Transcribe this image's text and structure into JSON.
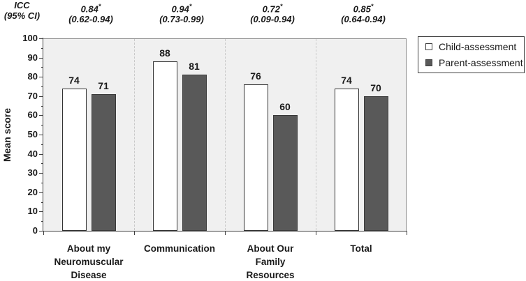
{
  "figure": {
    "icc_header": {
      "line1": "ICC",
      "line2": "(95% CI)"
    }
  },
  "colors": {
    "text": "#1a1a1a",
    "axis_line": "#404040",
    "frame_line": "#8c8c8c",
    "plot_background": "#f0f0f0",
    "separator_line": "#c8c8c8",
    "child_bar_fill": "#ffffff",
    "child_bar_border": "#333333",
    "parent_bar_fill": "#595959",
    "parent_bar_border": "#3a3a3a",
    "legend_border": "#404040"
  },
  "chart_data": {
    "type": "bar",
    "title": "",
    "xlabel": "",
    "ylabel": "Mean score",
    "ylim": [
      0,
      100
    ],
    "y_major_tick": 10,
    "y_minor_tick": 5,
    "grid": "off",
    "legend_position": "right",
    "categories": [
      "About my\nNeuromuscular\nDisease",
      "Communication",
      "About Our\nFamily\nResources",
      "Total"
    ],
    "series": [
      {
        "name": "Child-assessment",
        "values": [
          74,
          88,
          76,
          74
        ],
        "fill": "#ffffff",
        "border": "#333333"
      },
      {
        "name": "Parent-assessment",
        "values": [
          71,
          81,
          60,
          70
        ],
        "fill": "#595959",
        "border": "#3a3a3a"
      }
    ],
    "icc_annotations": [
      {
        "value": "0.84",
        "star": "*",
        "ci": "(0.62-0.94)"
      },
      {
        "value": "0.94",
        "star": "*",
        "ci": "(0.73-0.99)"
      },
      {
        "value": "0.72",
        "star": "*",
        "ci": "(0.09-0.94)"
      },
      {
        "value": "0.85",
        "star": "*",
        "ci": "(0.64-0.94)"
      }
    ]
  }
}
